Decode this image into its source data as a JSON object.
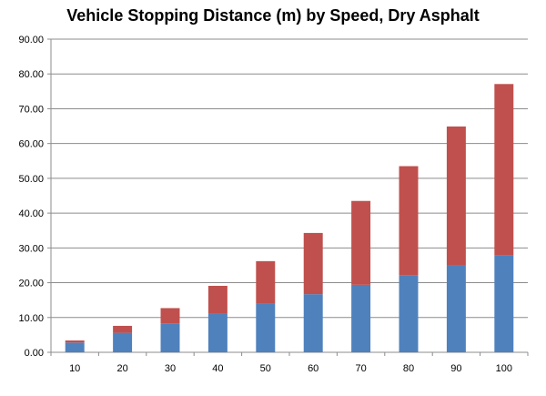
{
  "chart_data": {
    "type": "bar",
    "stacked": true,
    "title": "Vehicle Stopping Distance (m) by Speed, Dry Asphalt",
    "xlabel": "",
    "ylabel": "",
    "categories": [
      "10",
      "20",
      "30",
      "40",
      "50",
      "60",
      "70",
      "80",
      "90",
      "100"
    ],
    "series": [
      {
        "color": "#4F81BD",
        "values": [
          2.8,
          5.6,
          8.3,
          11.1,
          13.9,
          16.7,
          19.4,
          22.2,
          25.0,
          27.8
        ]
      },
      {
        "color": "#C0504D",
        "values": [
          0.6,
          2.0,
          4.4,
          8.0,
          12.3,
          17.6,
          24.1,
          31.3,
          39.9,
          49.3
        ]
      }
    ],
    "ylim": [
      0,
      90
    ],
    "ytick_step": 10,
    "ytick_labels": [
      "0.00",
      "10.00",
      "20.00",
      "30.00",
      "40.00",
      "50.00",
      "60.00",
      "70.00",
      "80.00",
      "90.00"
    ],
    "grid": true,
    "legend": "none"
  }
}
